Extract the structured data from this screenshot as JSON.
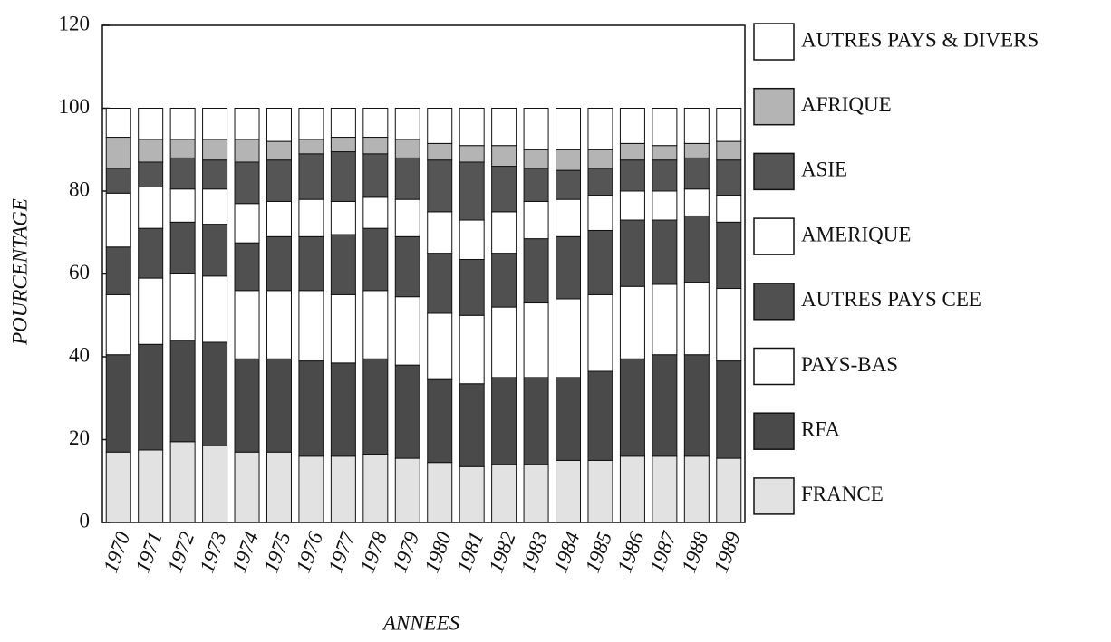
{
  "chart_data": {
    "type": "bar",
    "stacked": true,
    "xlabel": "ANNEES",
    "ylabel": "POURCENTAGE",
    "legend": "right",
    "categories": [
      "1970",
      "1971",
      "1972",
      "1973",
      "1974",
      "1975",
      "1976",
      "1977",
      "1978",
      "1979",
      "1980",
      "1981",
      "1982",
      "1983",
      "1984",
      "1985",
      "1986",
      "1987",
      "1988",
      "1989"
    ],
    "ylim": [
      0,
      120
    ],
    "yticks": [
      0,
      20,
      40,
      60,
      80,
      100,
      120
    ],
    "series": [
      {
        "name": "FRANCE",
        "color": "#e2e2e2",
        "values": [
          17,
          17.5,
          19.5,
          18.5,
          17,
          17,
          16,
          16,
          16.5,
          15.5,
          14.5,
          13.5,
          14,
          14,
          15,
          15,
          16,
          16,
          16,
          15.5
        ]
      },
      {
        "name": "RFA",
        "color": "#4a4a4a",
        "values": [
          23.5,
          25.5,
          24.5,
          25,
          22.5,
          22.5,
          23,
          22.5,
          23,
          22.5,
          20,
          20,
          21,
          21,
          20,
          21.5,
          23.5,
          24.5,
          24.5,
          23.5
        ]
      },
      {
        "name": "PAYS-BAS",
        "color": "#ffffff",
        "values": [
          14.5,
          16,
          16,
          16,
          16.5,
          16.5,
          17,
          16.5,
          16.5,
          16.5,
          16,
          16.5,
          17,
          18,
          19,
          18.5,
          17.5,
          17,
          17.5,
          17.5
        ]
      },
      {
        "name": "AUTRES PAYS CEE",
        "color": "#505050",
        "values": [
          11.5,
          12,
          12.5,
          12.5,
          11.5,
          13,
          13,
          14.5,
          15,
          14.5,
          14.5,
          13.5,
          13,
          15.5,
          15,
          15.5,
          16,
          15.5,
          16,
          16
        ]
      },
      {
        "name": "AMERIQUE",
        "color": "#ffffff",
        "values": [
          13,
          10,
          8,
          8.5,
          9.5,
          8.5,
          9,
          8,
          7.5,
          9,
          10,
          9.5,
          10,
          9,
          9,
          8.5,
          7,
          7,
          6.5,
          6.5
        ]
      },
      {
        "name": "ASIE",
        "color": "#555555",
        "values": [
          6,
          6,
          7.5,
          7,
          10,
          10,
          11,
          12,
          10.5,
          10,
          12.5,
          14,
          11,
          8,
          7,
          6.5,
          7.5,
          7.5,
          7.5,
          8.5
        ]
      },
      {
        "name": "AFRIQUE",
        "color": "#b4b4b4",
        "values": [
          7.5,
          5.5,
          4.5,
          5,
          5.5,
          4.5,
          3.5,
          3.5,
          4,
          4.5,
          4,
          4,
          5,
          4.5,
          5,
          4.5,
          4,
          3.5,
          3.5,
          4.5
        ]
      },
      {
        "name": "AUTRES PAYS & DIVERS",
        "color": "#ffffff",
        "values": [
          7,
          7.5,
          7.5,
          7.5,
          7.5,
          8,
          7.5,
          7,
          7,
          7.5,
          8.5,
          9,
          9,
          10,
          10,
          10,
          8.5,
          9,
          8.5,
          8
        ]
      }
    ]
  }
}
